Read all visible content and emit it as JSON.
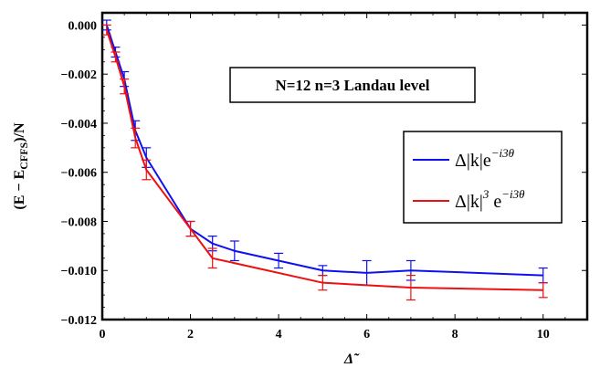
{
  "chart_data": {
    "type": "line",
    "title": "",
    "annotation": "N=12  n=3 Landau level",
    "xlabel": "Δ̃",
    "ylabel": {
      "prefix": "(E − E",
      "subscript": "CFFS",
      "suffix": ")/N"
    },
    "xlim": [
      0,
      11
    ],
    "ylim": [
      -0.012,
      0.0005
    ],
    "xticks": [
      0,
      2,
      4,
      6,
      8,
      10
    ],
    "xtick_labels": [
      "0",
      "2",
      "4",
      "6",
      "8",
      "10"
    ],
    "yticks": [
      0.0,
      -0.002,
      -0.004,
      -0.006,
      -0.008,
      -0.01,
      -0.012
    ],
    "ytick_labels": [
      "0.000",
      "−0.002",
      "−0.004",
      "−0.006",
      "−0.008",
      "−0.010",
      "−0.012"
    ],
    "grid": false,
    "legend_position": "right-middle",
    "series": [
      {
        "name": "Δ|k|e^{-i3θ}",
        "legend_main": "Δ|k|e",
        "legend_sup": "−i3θ",
        "color": "#1010ee",
        "x": [
          0.1,
          0.3,
          0.5,
          0.75,
          1.0,
          2.0,
          2.5,
          3.0,
          4.0,
          5.0,
          6.0,
          7.0,
          10.0
        ],
        "y": [
          0.0,
          -0.0011,
          -0.0022,
          -0.0043,
          -0.0054,
          -0.0083,
          -0.0089,
          -0.0092,
          -0.0096,
          -0.01,
          -0.0101,
          -0.01,
          -0.0102
        ],
        "err": [
          0.0002,
          0.0002,
          0.0003,
          0.0004,
          0.0004,
          0.0003,
          0.0003,
          0.0004,
          0.0003,
          0.0002,
          0.0005,
          0.0004,
          0.0003
        ]
      },
      {
        "name": "Δ|k|^3 e^{-i3θ}",
        "legend_main": "Δ|k|",
        "legend_exp": "3",
        "legend_e": " e",
        "legend_sup": "−i3θ",
        "color": "#ee1010",
        "x": [
          0.1,
          0.3,
          0.5,
          0.75,
          1.0,
          2.0,
          2.5,
          5.0,
          7.0,
          10.0
        ],
        "y": [
          -0.0002,
          -0.0013,
          -0.0025,
          -0.0046,
          -0.0059,
          -0.0083,
          -0.0095,
          -0.0105,
          -0.0107,
          -0.0108
        ],
        "err": [
          0.0002,
          0.0002,
          0.0003,
          0.0004,
          0.0004,
          0.0003,
          0.0004,
          0.0003,
          0.0005,
          0.0003
        ]
      }
    ]
  }
}
